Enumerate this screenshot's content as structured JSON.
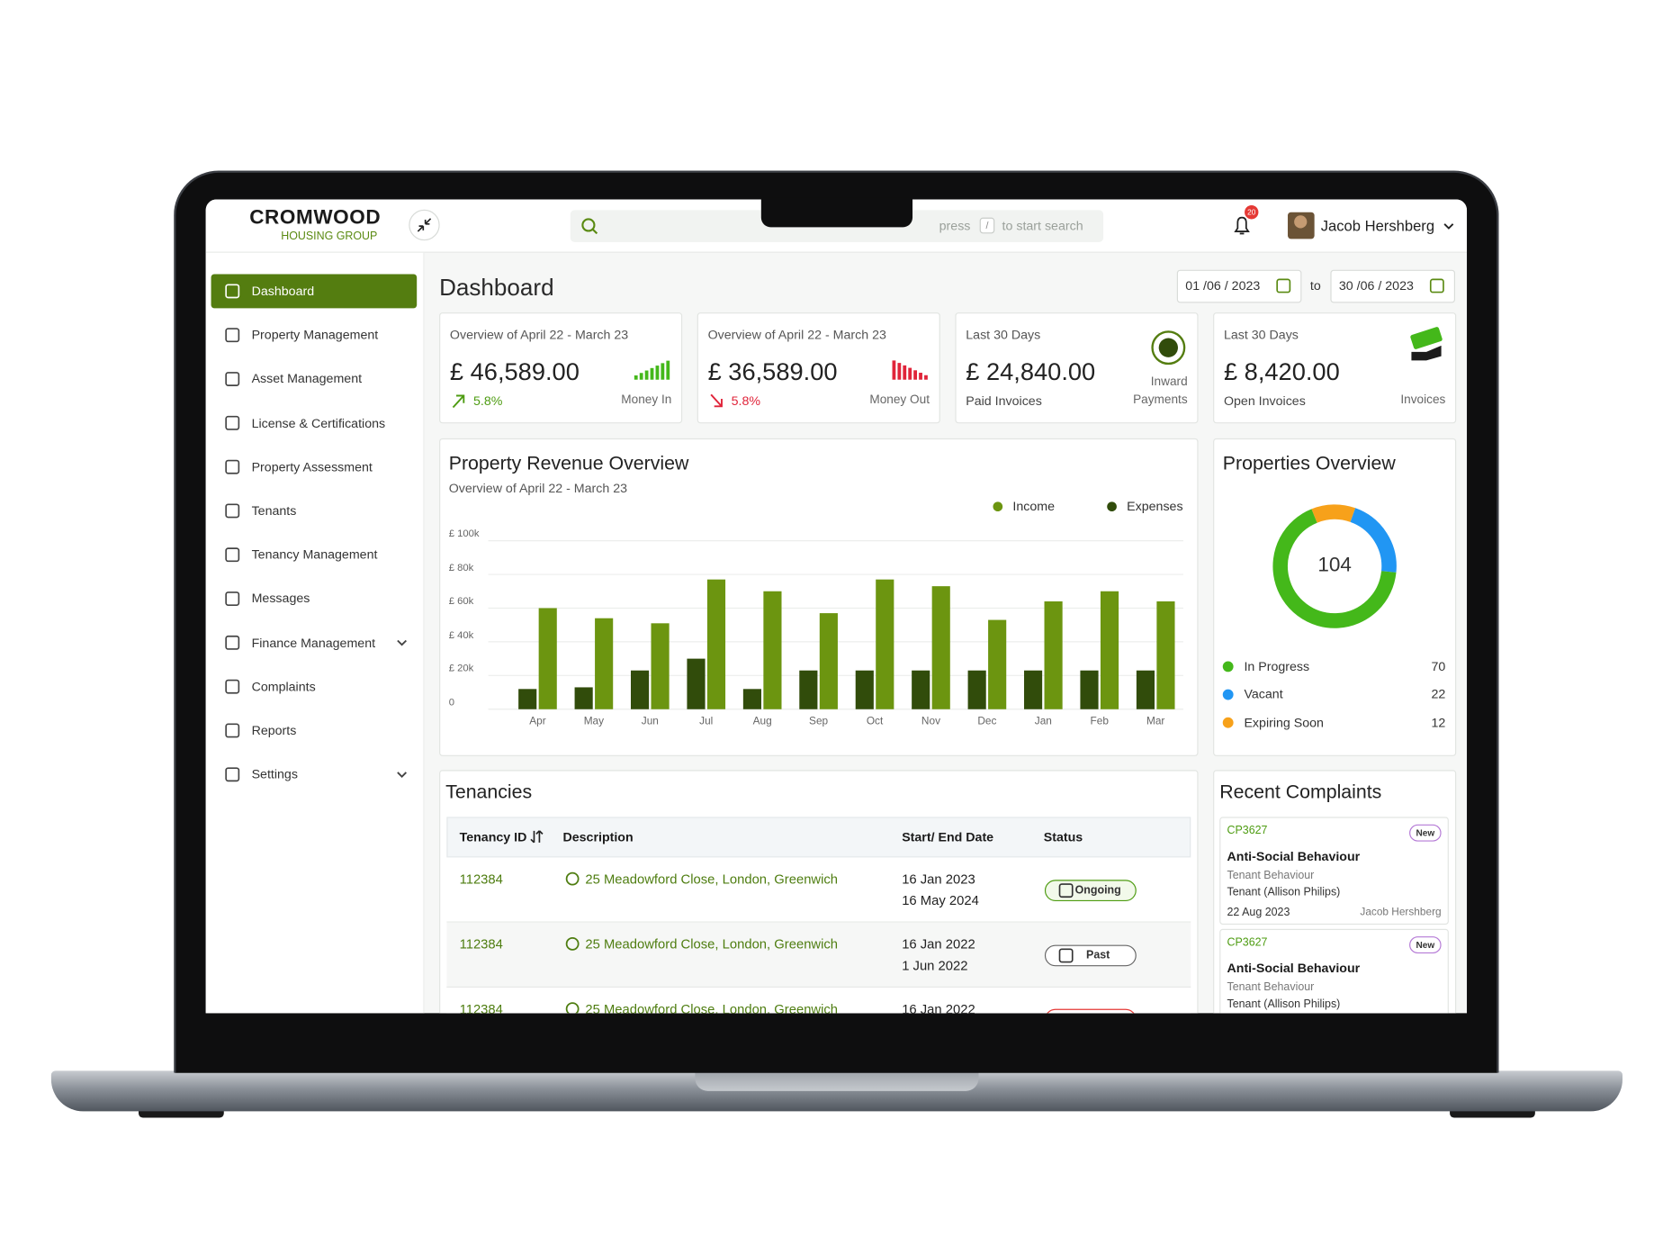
{
  "header": {
    "brand": "CROMWOOD",
    "brand_sub": "HOUSING GROUP",
    "search_hint": [
      "press",
      "/",
      "to start search"
    ],
    "notifications": 20,
    "user_name": "Jacob Hershberg"
  },
  "sidebar": {
    "items": [
      {
        "label": "Dashboard",
        "active": true
      },
      {
        "label": "Property Management"
      },
      {
        "label": "Asset Management"
      },
      {
        "label": "License &  Certifications"
      },
      {
        "label": "Property Assessment"
      },
      {
        "label": "Tenants"
      },
      {
        "label": "Tenancy Management"
      },
      {
        "label": "Messages"
      },
      {
        "label": "Finance Management",
        "has_submenu": true
      },
      {
        "label": "Complaints"
      },
      {
        "label": "Reports"
      },
      {
        "label": "Settings",
        "has_submenu": true
      }
    ]
  },
  "dashboard": {
    "title": "Dashboard",
    "date_from": "01 /06 / 2023",
    "date_separator": "to",
    "date_to": "30 /06 / 2023"
  },
  "stat_cards": [
    {
      "label": "Overview of April 22 - March 23",
      "amount": "£ 46,589.00",
      "change": "5.8%",
      "trend": "up",
      "caption": [
        "Money In"
      ]
    },
    {
      "label": "Overview of April 22 - March 23",
      "amount": "£ 36,589.00",
      "change": "5.8%",
      "trend": "down",
      "caption": [
        "Money Out"
      ]
    },
    {
      "label": "Last 30 Days",
      "amount": "£ 24,840.00",
      "footer": "Paid Invoices",
      "caption": [
        "Inward",
        "Payments"
      ]
    },
    {
      "label": "Last 30 Days",
      "amount": "£ 8,420.00",
      "footer": "Open Invoices",
      "caption": [
        "Invoices"
      ]
    }
  ],
  "revenue_chart": {
    "type": "bar",
    "title": "Property Revenue Overview",
    "subtitle": "Overview of April 22 - March 23",
    "categories": [
      "Apr",
      "May",
      "Jun",
      "Jul",
      "Aug",
      "Sep",
      "Oct",
      "Nov",
      "Dec",
      "Jan",
      "Feb",
      "Mar"
    ],
    "series": [
      {
        "name": "Income",
        "color": "#6c9510",
        "values": [
          60000,
          54000,
          51000,
          77000,
          70000,
          57000,
          77000,
          73000,
          53000,
          64000,
          70000,
          64000
        ]
      },
      {
        "name": "Expenses",
        "color": "#314c0b",
        "values": [
          12000,
          13000,
          23000,
          30000,
          12000,
          23000,
          23000,
          23000,
          23000,
          23000,
          23000,
          23000
        ]
      }
    ],
    "ylim": [
      0,
      100000
    ],
    "yticks": [
      0,
      {
        "value": 20000,
        "label": "£ 20k"
      },
      {
        "value": 40000,
        "label": "£ 40k"
      },
      {
        "value": 60000,
        "label": "£ 60k"
      },
      {
        "value": 80000,
        "label": "£ 80k"
      },
      {
        "value": 100000,
        "label": "£ 100k"
      }
    ],
    "grid": true
  },
  "properties_overview": {
    "type": "donut",
    "title": "Properties Overview",
    "total": 104,
    "categories": [
      "In Progress",
      "Vacant",
      "Expiring Soon"
    ],
    "values": [
      70,
      22,
      12
    ],
    "colors": [
      "#44b81a",
      "#2196f3",
      "#f7a11a"
    ]
  },
  "tenancies": {
    "title": "Tenancies",
    "columns": [
      "Tenancy ID",
      "Description",
      "Start/ End Date",
      "Status"
    ],
    "rows": [
      {
        "id": "112384",
        "description": "25 Meadowford Close, London, Greenwich",
        "dates": [
          "16 Jan 2023",
          "16 May 2024"
        ],
        "status": "Ongoing"
      },
      {
        "id": "112384",
        "description": "25 Meadowford Close, London, Greenwich",
        "dates": [
          "16 Jan 2022",
          "1 Jun 2022"
        ],
        "status": "Past"
      },
      {
        "id": "112384",
        "description": "25 Meadowford Close, London, Greenwich",
        "dates": [
          "16 Jan 2022"
        ]
      }
    ]
  },
  "complaints": {
    "title": "Recent Complaints",
    "items": [
      {
        "id": "CP3627",
        "badge": "New",
        "title": "Anti-Social Behaviour",
        "category": "Tenant Behaviour",
        "tenant": "Tenant (Allison Philips)",
        "date": "22 Aug 2023",
        "assignee": "Jacob Hershberg"
      },
      {
        "id": "CP3627",
        "badge": "New",
        "title": "Anti-Social Behaviour",
        "category": "Tenant Behaviour",
        "tenant": "Tenant (Allison Philips)"
      }
    ]
  }
}
